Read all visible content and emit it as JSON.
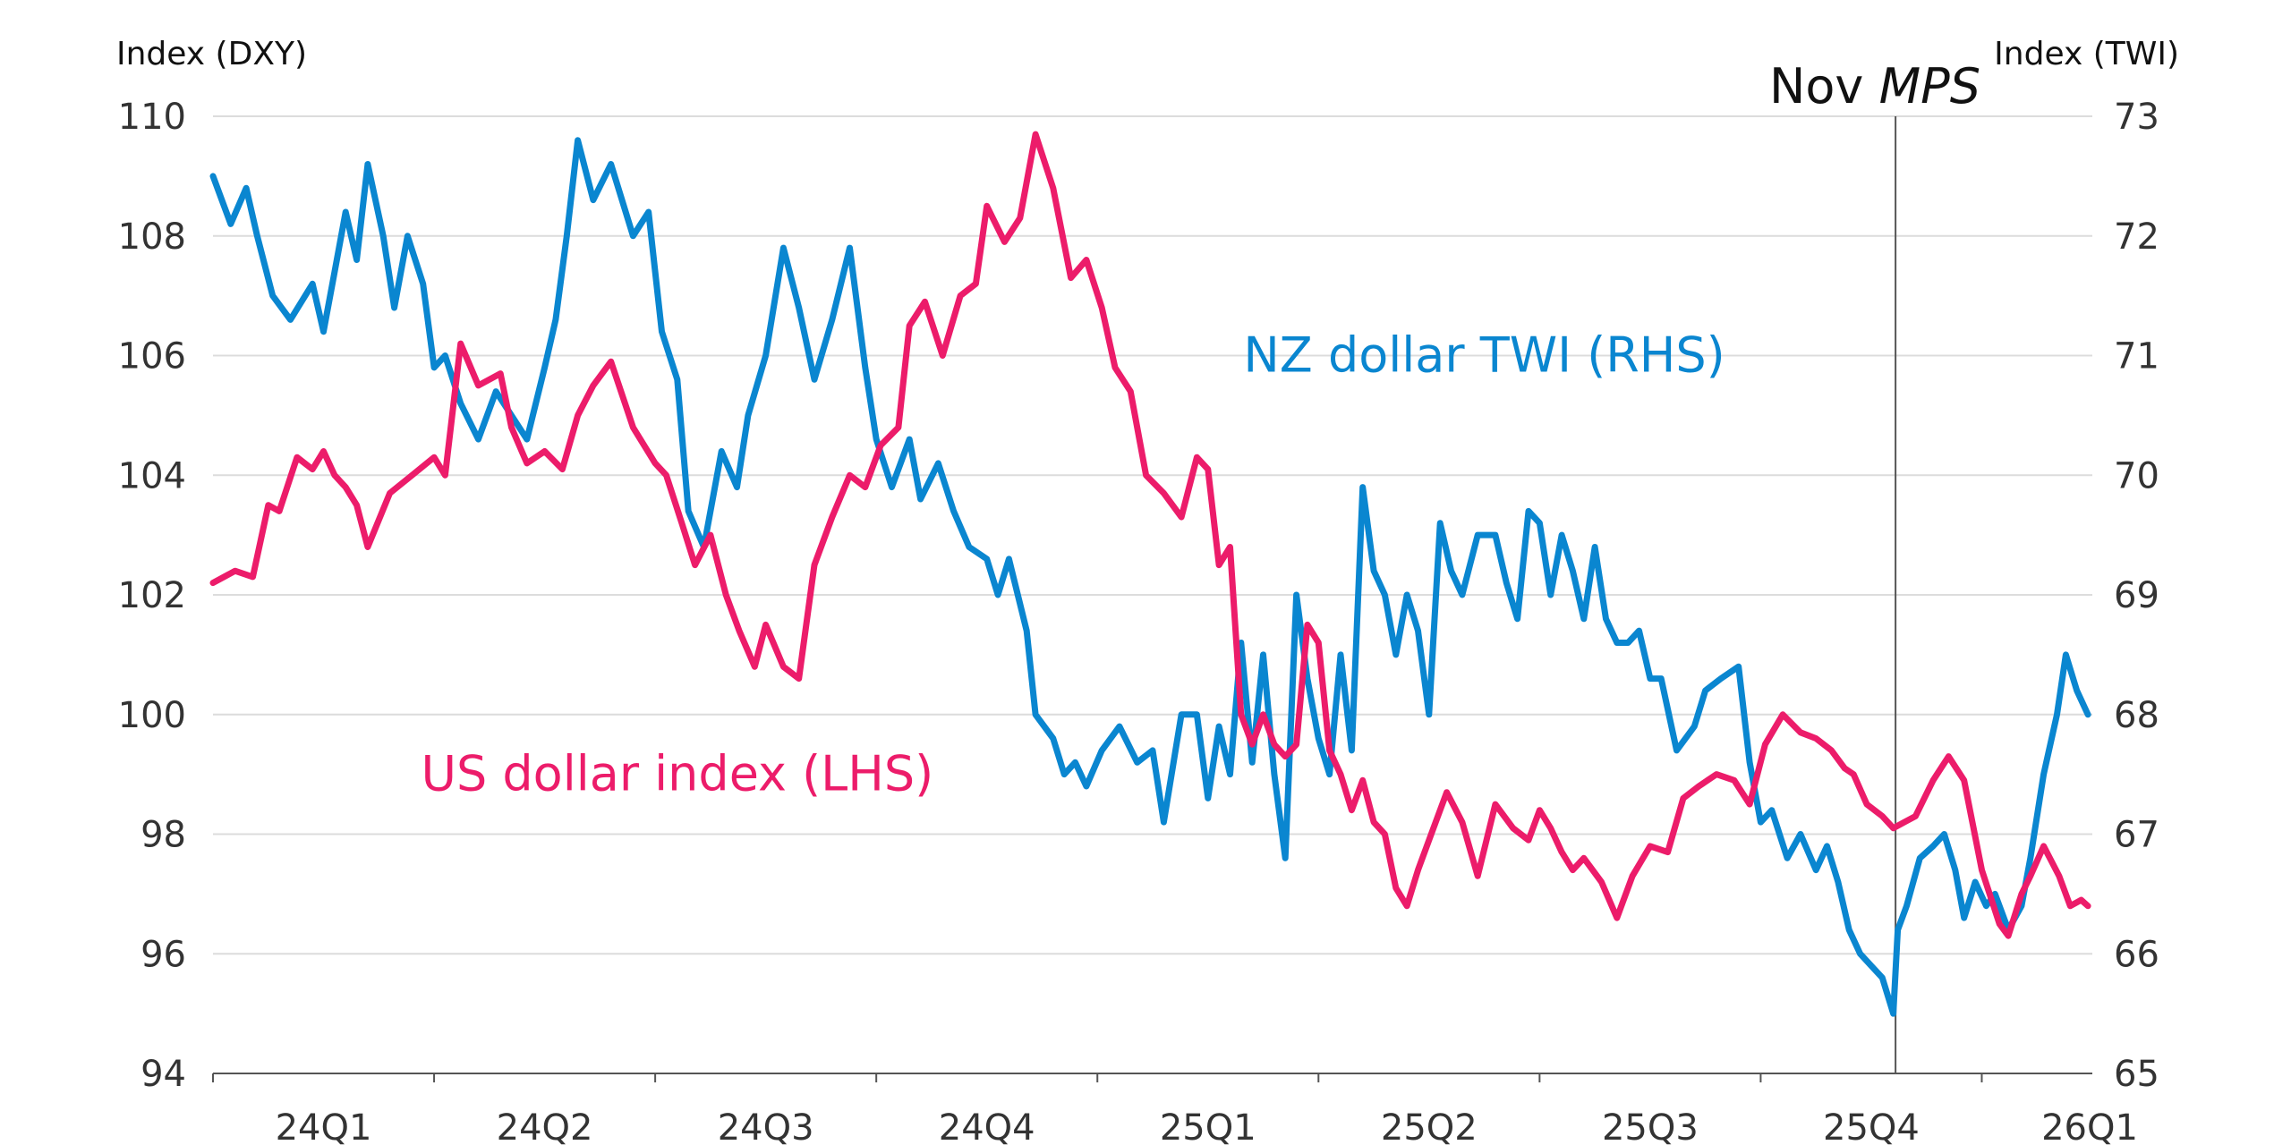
{
  "chart_data": {
    "type": "line",
    "left_axis": {
      "label": "Index (DXY)",
      "ylim": [
        94,
        110
      ],
      "ticks": [
        "94",
        "96",
        "98",
        "100",
        "102",
        "104",
        "106",
        "108",
        "110"
      ]
    },
    "right_axis": {
      "label": "Index (TWI)",
      "ylim": [
        65,
        73
      ],
      "ticks": [
        "65",
        "66",
        "67",
        "68",
        "69",
        "70",
        "71",
        "72",
        "73"
      ]
    },
    "x_axis": {
      "range": [
        0,
        8.5
      ],
      "ticks": [
        "24Q1",
        "24Q2",
        "24Q3",
        "24Q4",
        "25Q1",
        "25Q2",
        "25Q3",
        "25Q4",
        "26Q1"
      ]
    },
    "grid": "horizontal",
    "annotation": {
      "line_x": 7.61,
      "prefix": "Nov ",
      "emphasis": "MPS"
    },
    "series": [
      {
        "name": "NZ dollar TWI (RHS)",
        "axis": "right",
        "color": "#0a86d0",
        "x": [
          0.0,
          0.08,
          0.15,
          0.2,
          0.27,
          0.35,
          0.45,
          0.5,
          0.55,
          0.6,
          0.65,
          0.7,
          0.77,
          0.82,
          0.88,
          0.95,
          1.0,
          1.05,
          1.12,
          1.2,
          1.28,
          1.35,
          1.42,
          1.5,
          1.55,
          1.6,
          1.65,
          1.72,
          1.8,
          1.9,
          1.97,
          2.03,
          2.1,
          2.15,
          2.22,
          2.3,
          2.37,
          2.42,
          2.5,
          2.58,
          2.65,
          2.72,
          2.8,
          2.88,
          2.95,
          3.0,
          3.07,
          3.15,
          3.2,
          3.28,
          3.35,
          3.42,
          3.5,
          3.55,
          3.6,
          3.68,
          3.72,
          3.8,
          3.85,
          3.9,
          3.95,
          4.02,
          4.1,
          4.18,
          4.25,
          4.3,
          4.38,
          4.45,
          4.5,
          4.55,
          4.6,
          4.65,
          4.7,
          4.75,
          4.8,
          4.85,
          4.9,
          4.95,
          5.0,
          5.05,
          5.1,
          5.15,
          5.2,
          5.25,
          5.3,
          5.35,
          5.4,
          5.45,
          5.5,
          5.55,
          5.6,
          5.65,
          5.72,
          5.8,
          5.85,
          5.9,
          5.95,
          6.0,
          6.05,
          6.1,
          6.15,
          6.2,
          6.25,
          6.3,
          6.35,
          6.4,
          6.45,
          6.5,
          6.55,
          6.62,
          6.7,
          6.75,
          6.82,
          6.9,
          6.95,
          7.0,
          7.05,
          7.12,
          7.18,
          7.25,
          7.3,
          7.35,
          7.4,
          7.45,
          7.5,
          7.55,
          7.6,
          7.62,
          7.66,
          7.72,
          7.78,
          7.83,
          7.88,
          7.92,
          7.97,
          8.02,
          8.06,
          8.12,
          8.18,
          8.22,
          8.28,
          8.34,
          8.38,
          8.43,
          8.48
        ],
        "values": [
          72.5,
          72.1,
          72.4,
          72.0,
          71.5,
          71.3,
          71.6,
          71.2,
          71.7,
          72.2,
          71.8,
          72.6,
          72.0,
          71.4,
          72.0,
          71.6,
          70.9,
          71.0,
          70.6,
          70.3,
          70.7,
          70.5,
          70.3,
          70.9,
          71.3,
          72.0,
          72.8,
          72.3,
          72.6,
          72.0,
          72.2,
          71.2,
          70.8,
          69.7,
          69.4,
          70.2,
          69.9,
          70.5,
          71.0,
          71.9,
          71.4,
          70.8,
          71.3,
          71.9,
          70.9,
          70.3,
          69.9,
          70.3,
          69.8,
          70.1,
          69.7,
          69.4,
          69.3,
          69.0,
          69.3,
          68.7,
          68.0,
          67.8,
          67.5,
          67.6,
          67.4,
          67.7,
          67.9,
          67.6,
          67.7,
          67.1,
          68.0,
          68.0,
          67.3,
          67.9,
          67.5,
          68.6,
          67.6,
          68.5,
          67.5,
          66.8,
          69.0,
          68.3,
          67.8,
          67.5,
          68.5,
          67.7,
          69.9,
          69.2,
          69.0,
          68.5,
          69.0,
          68.7,
          68.0,
          69.6,
          69.2,
          69.0,
          69.5,
          69.5,
          69.1,
          68.8,
          69.7,
          69.6,
          69.0,
          69.5,
          69.2,
          68.8,
          69.4,
          68.8,
          68.6,
          68.6,
          68.7,
          68.3,
          68.3,
          67.7,
          67.9,
          68.2,
          68.3,
          68.4,
          67.6,
          67.1,
          67.2,
          66.8,
          67.0,
          66.7,
          66.9,
          66.6,
          66.2,
          66.0,
          65.9,
          65.8,
          65.5,
          66.2,
          66.4,
          66.8,
          66.9,
          67.0,
          66.7,
          66.3,
          66.6,
          66.4,
          66.5,
          66.2,
          66.4,
          66.8,
          67.5,
          68.0,
          68.5,
          68.2,
          68.0
        ],
        "label_position": [
          5.75,
          106.0
        ],
        "label_text": "NZ dollar TWI (RHS)"
      },
      {
        "name": "US dollar index (LHS)",
        "axis": "left",
        "color": "#ec1c6a",
        "x": [
          0.0,
          0.1,
          0.18,
          0.25,
          0.3,
          0.38,
          0.45,
          0.5,
          0.55,
          0.6,
          0.65,
          0.7,
          0.8,
          0.9,
          1.0,
          1.05,
          1.12,
          1.2,
          1.3,
          1.35,
          1.42,
          1.5,
          1.58,
          1.65,
          1.72,
          1.8,
          1.9,
          2.0,
          2.05,
          2.12,
          2.18,
          2.25,
          2.32,
          2.38,
          2.45,
          2.5,
          2.58,
          2.65,
          2.72,
          2.8,
          2.88,
          2.95,
          3.02,
          3.1,
          3.15,
          3.22,
          3.3,
          3.38,
          3.45,
          3.5,
          3.58,
          3.65,
          3.72,
          3.8,
          3.88,
          3.95,
          4.02,
          4.08,
          4.15,
          4.22,
          4.3,
          4.38,
          4.45,
          4.5,
          4.55,
          4.6,
          4.65,
          4.7,
          4.75,
          4.8,
          4.85,
          4.9,
          4.95,
          5.0,
          5.05,
          5.1,
          5.15,
          5.2,
          5.25,
          5.3,
          5.35,
          5.4,
          5.45,
          5.5,
          5.58,
          5.65,
          5.72,
          5.8,
          5.88,
          5.95,
          6.0,
          6.05,
          6.1,
          6.15,
          6.2,
          6.28,
          6.35,
          6.42,
          6.5,
          6.58,
          6.65,
          6.72,
          6.8,
          6.88,
          6.95,
          7.02,
          7.1,
          7.18,
          7.25,
          7.32,
          7.38,
          7.42,
          7.48,
          7.55,
          7.6,
          7.65,
          7.7,
          7.78,
          7.85,
          7.92,
          8.0,
          8.08,
          8.12,
          8.18,
          8.22,
          8.28,
          8.35,
          8.4,
          8.45,
          8.48
        ],
        "values": [
          102.2,
          102.4,
          102.3,
          103.5,
          103.4,
          104.3,
          104.1,
          104.4,
          104.0,
          103.8,
          103.5,
          102.8,
          103.7,
          104.0,
          104.3,
          104.0,
          106.2,
          105.5,
          105.7,
          104.8,
          104.2,
          104.4,
          104.1,
          105.0,
          105.5,
          105.9,
          104.8,
          104.2,
          104.0,
          103.2,
          102.5,
          103.0,
          102.0,
          101.4,
          100.8,
          101.5,
          100.8,
          100.6,
          102.5,
          103.3,
          104.0,
          103.8,
          104.5,
          104.8,
          106.5,
          106.9,
          106.0,
          107.0,
          107.2,
          108.5,
          107.9,
          108.3,
          109.7,
          108.8,
          107.3,
          107.6,
          106.8,
          105.8,
          105.4,
          104.0,
          103.7,
          103.3,
          104.3,
          104.1,
          102.5,
          102.8,
          100.0,
          99.5,
          100.0,
          99.5,
          99.3,
          99.5,
          101.5,
          101.2,
          99.4,
          99.0,
          98.4,
          98.9,
          98.2,
          98.0,
          97.1,
          96.8,
          97.4,
          97.9,
          98.7,
          98.2,
          97.3,
          98.5,
          98.1,
          97.9,
          98.4,
          98.1,
          97.7,
          97.4,
          97.6,
          97.2,
          96.6,
          97.3,
          97.8,
          97.7,
          98.6,
          98.8,
          99.0,
          98.9,
          98.5,
          99.5,
          100.0,
          99.7,
          99.6,
          99.4,
          99.1,
          99.0,
          98.5,
          98.3,
          98.1,
          98.2,
          98.3,
          98.9,
          99.3,
          98.9,
          97.4,
          96.5,
          96.3,
          97.0,
          97.3,
          97.8,
          97.3,
          96.8,
          96.9,
          96.8
        ],
        "label_position": [
          2.1,
          99.0
        ],
        "label_text": "US dollar index (LHS)"
      }
    ]
  }
}
